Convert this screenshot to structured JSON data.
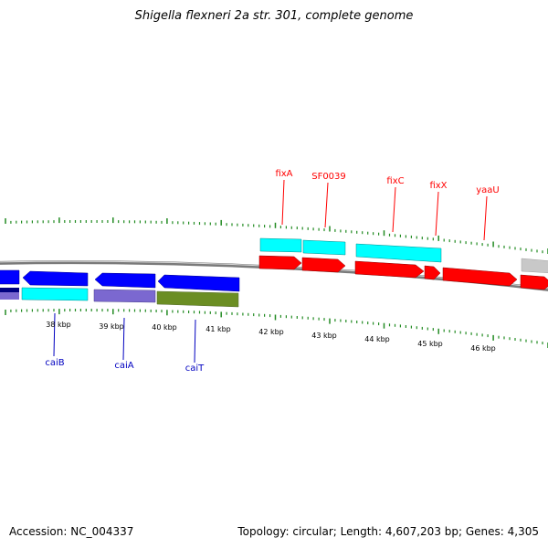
{
  "title": "Shigella flexneri 2a str. 301, complete genome",
  "footer": {
    "accession": "Accession: NC_004337",
    "summary": "Topology: circular; Length: 4,607,203 bp; Genes: 4,305"
  },
  "colors": {
    "background": "#ffffff",
    "backbone": "#808080",
    "forward_gene": "#ff0000",
    "forward_cds": "#00ffff",
    "reverse_gene": "#0000ff",
    "reverse_cds_cyan": "#00ffff",
    "reverse_cds_purple": "#7b68d0",
    "reverse_cds_olive": "#6b8e23",
    "reverse_cds_navy": "#000080",
    "gray_feature": "#c0c0c0",
    "tick": "#228b22",
    "forward_label": "#ff0000",
    "reverse_label": "#0000c0",
    "position_label": "#000000"
  },
  "position_labels": [
    "38 kbp",
    "39 kbp",
    "40 kbp",
    "41 kbp",
    "42 kbp",
    "43 kbp",
    "44 kbp",
    "45 kbp",
    "46 kbp"
  ],
  "forward_gene_labels": [
    "fixA",
    "SF0039",
    "fixC",
    "fixX",
    "yaaU"
  ],
  "reverse_gene_labels": [
    "caiB",
    "caiA",
    "caiT"
  ]
}
